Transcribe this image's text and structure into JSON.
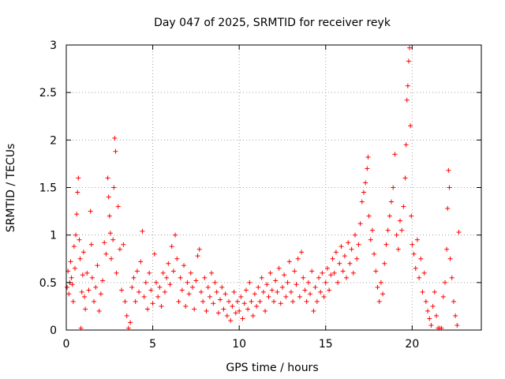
{
  "chart_data": {
    "type": "scatter",
    "title": "Day 047 of 2025, SRMTID for receiver reyk",
    "xlabel": "GPS time / hours",
    "ylabel": "SRMTID / TECUs",
    "xlim": [
      0,
      24
    ],
    "ylim": [
      0,
      3
    ],
    "xticks": [
      0,
      5,
      10,
      15,
      20
    ],
    "yticks": [
      0,
      0.5,
      1,
      1.5,
      2,
      2.5,
      3
    ],
    "xtick_labels": [
      "0",
      "5",
      "10",
      "15",
      "20"
    ],
    "ytick_labels": [
      "0",
      "0.5",
      "1",
      "1.5",
      "2",
      "2.5",
      "3"
    ],
    "grid": true,
    "marker": "+",
    "color": "#ff0000",
    "series": [
      {
        "name": "reyk",
        "points": [
          [
            0.05,
            0.45
          ],
          [
            0.1,
            0.62
          ],
          [
            0.15,
            0.38
          ],
          [
            0.2,
            0.5
          ],
          [
            0.25,
            0.72
          ],
          [
            0.3,
            0.55
          ],
          [
            0.35,
            0.48
          ],
          [
            0.4,
            0.3
          ],
          [
            0.45,
            0.88
          ],
          [
            0.5,
            0.65
          ],
          [
            0.55,
            1.0
          ],
          [
            0.6,
            1.22
          ],
          [
            0.65,
            1.45
          ],
          [
            0.7,
            1.6
          ],
          [
            0.75,
            0.95
          ],
          [
            0.8,
            0.75
          ],
          [
            0.85,
            0.02
          ],
          [
            0.9,
            0.4
          ],
          [
            0.95,
            0.58
          ],
          [
            1.0,
            0.82
          ],
          [
            1.05,
            0.35
          ],
          [
            1.1,
            0.22
          ],
          [
            1.2,
            0.6
          ],
          [
            1.3,
            0.42
          ],
          [
            1.4,
            1.25
          ],
          [
            1.45,
            0.9
          ],
          [
            1.5,
            0.55
          ],
          [
            1.6,
            0.3
          ],
          [
            1.7,
            0.45
          ],
          [
            1.8,
            0.68
          ],
          [
            1.9,
            0.2
          ],
          [
            2.0,
            0.38
          ],
          [
            2.1,
            0.52
          ],
          [
            2.2,
            0.92
          ],
          [
            2.3,
            0.8
          ],
          [
            2.4,
            1.6
          ],
          [
            2.45,
            1.4
          ],
          [
            2.5,
            1.2
          ],
          [
            2.55,
            1.02
          ],
          [
            2.6,
            0.75
          ],
          [
            2.7,
            0.95
          ],
          [
            2.75,
            1.5
          ],
          [
            2.8,
            2.02
          ],
          [
            2.85,
            1.88
          ],
          [
            2.9,
            0.6
          ],
          [
            3.0,
            1.3
          ],
          [
            3.1,
            0.85
          ],
          [
            3.2,
            0.42
          ],
          [
            3.3,
            0.9
          ],
          [
            3.4,
            0.3
          ],
          [
            3.5,
            0.15
          ],
          [
            3.6,
            0.02
          ],
          [
            3.7,
            0.08
          ],
          [
            3.8,
            0.45
          ],
          [
            3.9,
            0.55
          ],
          [
            4.0,
            0.3
          ],
          [
            4.1,
            0.62
          ],
          [
            4.2,
            0.4
          ],
          [
            4.3,
            0.72
          ],
          [
            4.4,
            1.04
          ],
          [
            4.5,
            0.35
          ],
          [
            4.6,
            0.5
          ],
          [
            4.7,
            0.22
          ],
          [
            4.8,
            0.6
          ],
          [
            4.9,
            0.42
          ],
          [
            5.0,
            0.28
          ],
          [
            5.1,
            0.8
          ],
          [
            5.2,
            0.5
          ],
          [
            5.3,
            0.35
          ],
          [
            5.4,
            0.45
          ],
          [
            5.5,
            0.25
          ],
          [
            5.6,
            0.6
          ],
          [
            5.7,
            0.4
          ],
          [
            5.8,
            0.55
          ],
          [
            5.9,
            0.7
          ],
          [
            6.0,
            0.48
          ],
          [
            6.1,
            0.88
          ],
          [
            6.2,
            0.62
          ],
          [
            6.3,
            1.0
          ],
          [
            6.4,
            0.75
          ],
          [
            6.5,
            0.3
          ],
          [
            6.6,
            0.55
          ],
          [
            6.7,
            0.42
          ],
          [
            6.8,
            0.68
          ],
          [
            6.9,
            0.25
          ],
          [
            7.0,
            0.5
          ],
          [
            7.1,
            0.38
          ],
          [
            7.2,
            0.6
          ],
          [
            7.3,
            0.45
          ],
          [
            7.4,
            0.22
          ],
          [
            7.5,
            0.52
          ],
          [
            7.6,
            0.78
          ],
          [
            7.7,
            0.85
          ],
          [
            7.8,
            0.4
          ],
          [
            7.9,
            0.3
          ],
          [
            8.0,
            0.55
          ],
          [
            8.1,
            0.2
          ],
          [
            8.2,
            0.45
          ],
          [
            8.3,
            0.35
          ],
          [
            8.4,
            0.6
          ],
          [
            8.5,
            0.28
          ],
          [
            8.6,
            0.5
          ],
          [
            8.7,
            0.4
          ],
          [
            8.8,
            0.18
          ],
          [
            8.9,
            0.32
          ],
          [
            9.0,
            0.45
          ],
          [
            9.1,
            0.22
          ],
          [
            9.2,
            0.38
          ],
          [
            9.3,
            0.15
          ],
          [
            9.4,
            0.3
          ],
          [
            9.5,
            0.1
          ],
          [
            9.6,
            0.25
          ],
          [
            9.7,
            0.4
          ],
          [
            9.8,
            0.18
          ],
          [
            9.9,
            0.3
          ],
          [
            10.0,
            0.2
          ],
          [
            10.1,
            0.35
          ],
          [
            10.2,
            0.12
          ],
          [
            10.3,
            0.28
          ],
          [
            10.4,
            0.42
          ],
          [
            10.5,
            0.22
          ],
          [
            10.6,
            0.5
          ],
          [
            10.7,
            0.3
          ],
          [
            10.8,
            0.15
          ],
          [
            10.9,
            0.38
          ],
          [
            11.0,
            0.25
          ],
          [
            11.1,
            0.45
          ],
          [
            11.2,
            0.3
          ],
          [
            11.3,
            0.55
          ],
          [
            11.4,
            0.4
          ],
          [
            11.5,
            0.2
          ],
          [
            11.6,
            0.48
          ],
          [
            11.7,
            0.35
          ],
          [
            11.8,
            0.6
          ],
          [
            11.9,
            0.42
          ],
          [
            12.0,
            0.3
          ],
          [
            12.1,
            0.52
          ],
          [
            12.2,
            0.4
          ],
          [
            12.3,
            0.65
          ],
          [
            12.4,
            0.28
          ],
          [
            12.5,
            0.45
          ],
          [
            12.6,
            0.58
          ],
          [
            12.7,
            0.35
          ],
          [
            12.8,
            0.5
          ],
          [
            12.9,
            0.72
          ],
          [
            13.0,
            0.4
          ],
          [
            13.1,
            0.3
          ],
          [
            13.2,
            0.62
          ],
          [
            13.3,
            0.48
          ],
          [
            13.4,
            0.75
          ],
          [
            13.5,
            0.35
          ],
          [
            13.6,
            0.82
          ],
          [
            13.7,
            0.55
          ],
          [
            13.8,
            0.42
          ],
          [
            13.9,
            0.3
          ],
          [
            14.0,
            0.5
          ],
          [
            14.1,
            0.38
          ],
          [
            14.2,
            0.62
          ],
          [
            14.3,
            0.2
          ],
          [
            14.4,
            0.45
          ],
          [
            14.5,
            0.3
          ],
          [
            14.6,
            0.55
          ],
          [
            14.7,
            0.4
          ],
          [
            14.8,
            0.6
          ],
          [
            14.9,
            0.35
          ],
          [
            15.0,
            0.5
          ],
          [
            15.1,
            0.65
          ],
          [
            15.2,
            0.42
          ],
          [
            15.3,
            0.58
          ],
          [
            15.4,
            0.75
          ],
          [
            15.5,
            0.6
          ],
          [
            15.6,
            0.82
          ],
          [
            15.7,
            0.5
          ],
          [
            15.8,
            0.7
          ],
          [
            15.9,
            0.88
          ],
          [
            16.0,
            0.62
          ],
          [
            16.1,
            0.78
          ],
          [
            16.2,
            0.55
          ],
          [
            16.3,
            0.92
          ],
          [
            16.4,
            0.7
          ],
          [
            16.5,
            0.85
          ],
          [
            16.6,
            0.6
          ],
          [
            16.7,
            1.0
          ],
          [
            16.8,
            0.75
          ],
          [
            16.9,
            0.9
          ],
          [
            17.0,
            1.12
          ],
          [
            17.1,
            1.35
          ],
          [
            17.2,
            1.45
          ],
          [
            17.3,
            1.55
          ],
          [
            17.4,
            1.7
          ],
          [
            17.45,
            1.82
          ],
          [
            17.5,
            1.2
          ],
          [
            17.6,
            0.95
          ],
          [
            17.7,
            1.05
          ],
          [
            17.8,
            0.8
          ],
          [
            17.9,
            0.62
          ],
          [
            18.0,
            0.45
          ],
          [
            18.1,
            0.3
          ],
          [
            18.2,
            0.5
          ],
          [
            18.3,
            0.38
          ],
          [
            18.4,
            0.7
          ],
          [
            18.5,
            0.9
          ],
          [
            18.6,
            1.05
          ],
          [
            18.7,
            1.2
          ],
          [
            18.8,
            1.35
          ],
          [
            18.9,
            1.5
          ],
          [
            19.0,
            1.85
          ],
          [
            19.1,
            1.0
          ],
          [
            19.2,
            0.85
          ],
          [
            19.3,
            1.15
          ],
          [
            19.4,
            1.05
          ],
          [
            19.5,
            1.3
          ],
          [
            19.6,
            1.6
          ],
          [
            19.65,
            1.95
          ],
          [
            19.7,
            2.42
          ],
          [
            19.75,
            2.57
          ],
          [
            19.8,
            2.83
          ],
          [
            19.85,
            2.97
          ],
          [
            19.9,
            2.15
          ],
          [
            19.95,
            1.2
          ],
          [
            20.0,
            0.9
          ],
          [
            20.1,
            0.8
          ],
          [
            20.2,
            0.65
          ],
          [
            20.3,
            0.95
          ],
          [
            20.4,
            0.55
          ],
          [
            20.5,
            0.75
          ],
          [
            20.6,
            0.4
          ],
          [
            20.7,
            0.6
          ],
          [
            20.8,
            0.3
          ],
          [
            20.9,
            0.2
          ],
          [
            21.0,
            0.12
          ],
          [
            21.1,
            0.05
          ],
          [
            21.2,
            0.25
          ],
          [
            21.3,
            0.4
          ],
          [
            21.4,
            0.15
          ],
          [
            21.5,
            0.02
          ],
          [
            21.6,
            0.02
          ],
          [
            21.7,
            0.02
          ],
          [
            21.8,
            0.35
          ],
          [
            21.9,
            0.5
          ],
          [
            22.0,
            0.85
          ],
          [
            22.05,
            1.28
          ],
          [
            22.1,
            1.68
          ],
          [
            22.15,
            1.5
          ],
          [
            22.2,
            0.75
          ],
          [
            22.3,
            0.55
          ],
          [
            22.4,
            0.3
          ],
          [
            22.5,
            0.15
          ],
          [
            22.6,
            0.05
          ],
          [
            22.7,
            1.03
          ]
        ]
      }
    ]
  }
}
